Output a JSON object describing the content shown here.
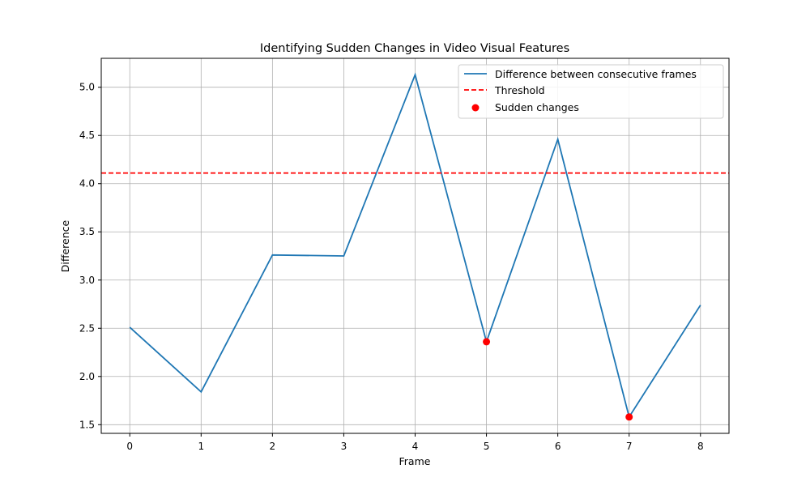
{
  "chart_data": {
    "type": "line",
    "title": "Identifying Sudden Changes in Video Visual Features",
    "xlabel": "Frame",
    "ylabel": "Difference",
    "x": [
      0,
      1,
      2,
      3,
      4,
      5,
      6,
      7,
      8
    ],
    "xlim": [
      -0.4,
      8.4
    ],
    "ylim": [
      1.41,
      5.3
    ],
    "xticks": [
      0,
      1,
      2,
      3,
      4,
      5,
      6,
      7,
      8
    ],
    "yticks": [
      1.5,
      2.0,
      2.5,
      3.0,
      3.5,
      4.0,
      4.5,
      5.0
    ],
    "ytick_labels": [
      "1.5",
      "2.0",
      "2.5",
      "3.0",
      "3.5",
      "4.0",
      "4.5",
      "5.0"
    ],
    "grid": true,
    "legend_position": "top-right",
    "series": [
      {
        "name": "Difference between consecutive frames",
        "kind": "line",
        "color": "#1f77b4",
        "values": [
          2.51,
          1.84,
          3.26,
          3.25,
          5.13,
          2.36,
          4.46,
          1.58,
          2.74
        ]
      },
      {
        "name": "Threshold",
        "kind": "hline-dashed",
        "color": "#ff0000",
        "value": 4.11
      },
      {
        "name": "Sudden changes",
        "kind": "scatter",
        "color": "#ff0000",
        "points": [
          {
            "x": 5,
            "y": 2.36
          },
          {
            "x": 7,
            "y": 1.58
          }
        ]
      }
    ]
  }
}
